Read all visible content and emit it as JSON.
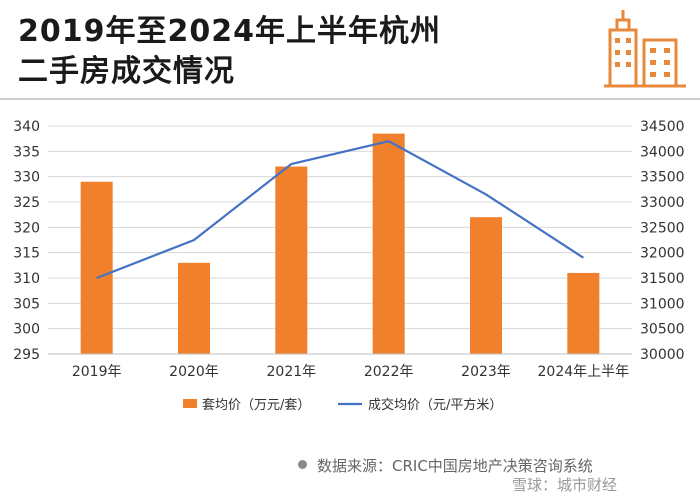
{
  "header": {
    "title_line1": "2019年至2024年上半年杭州",
    "title_line2": "二手房成交情况",
    "logo_icon": "city-buildings-icon"
  },
  "colors": {
    "bar": "#F0802B",
    "line": "#4472C4",
    "accent_logo": "#E8883A",
    "gridline": "#d9d9d9"
  },
  "chart_data": {
    "type": "bar",
    "categories": [
      "2019年",
      "2020年",
      "2021年",
      "2022年",
      "2023年",
      "2024年上半年"
    ],
    "series": [
      {
        "name": "套均价（万元/套）",
        "type": "bar",
        "axis": "left",
        "values": [
          329,
          313,
          332,
          338.5,
          322,
          311
        ]
      },
      {
        "name": "成交均价（元/平方米）",
        "type": "line",
        "axis": "right",
        "values": [
          31500,
          32250,
          33750,
          34200,
          33150,
          31900
        ]
      }
    ],
    "y_left": {
      "lim": [
        295,
        340
      ],
      "ticks": [
        "295",
        "300",
        "305",
        "310",
        "315",
        "320",
        "325",
        "330",
        "335",
        "340"
      ]
    },
    "y_right": {
      "lim": [
        30000,
        34500
      ],
      "ticks": [
        "30000",
        "30500",
        "31000",
        "31500",
        "32000",
        "32500",
        "33000",
        "33500",
        "34000",
        "34500"
      ]
    },
    "grid": true,
    "legend_position": "bottom"
  },
  "footer": {
    "source": "数据来源：CRIC中国房地产决策咨询系统",
    "watermark": "雪球：城市财经"
  }
}
